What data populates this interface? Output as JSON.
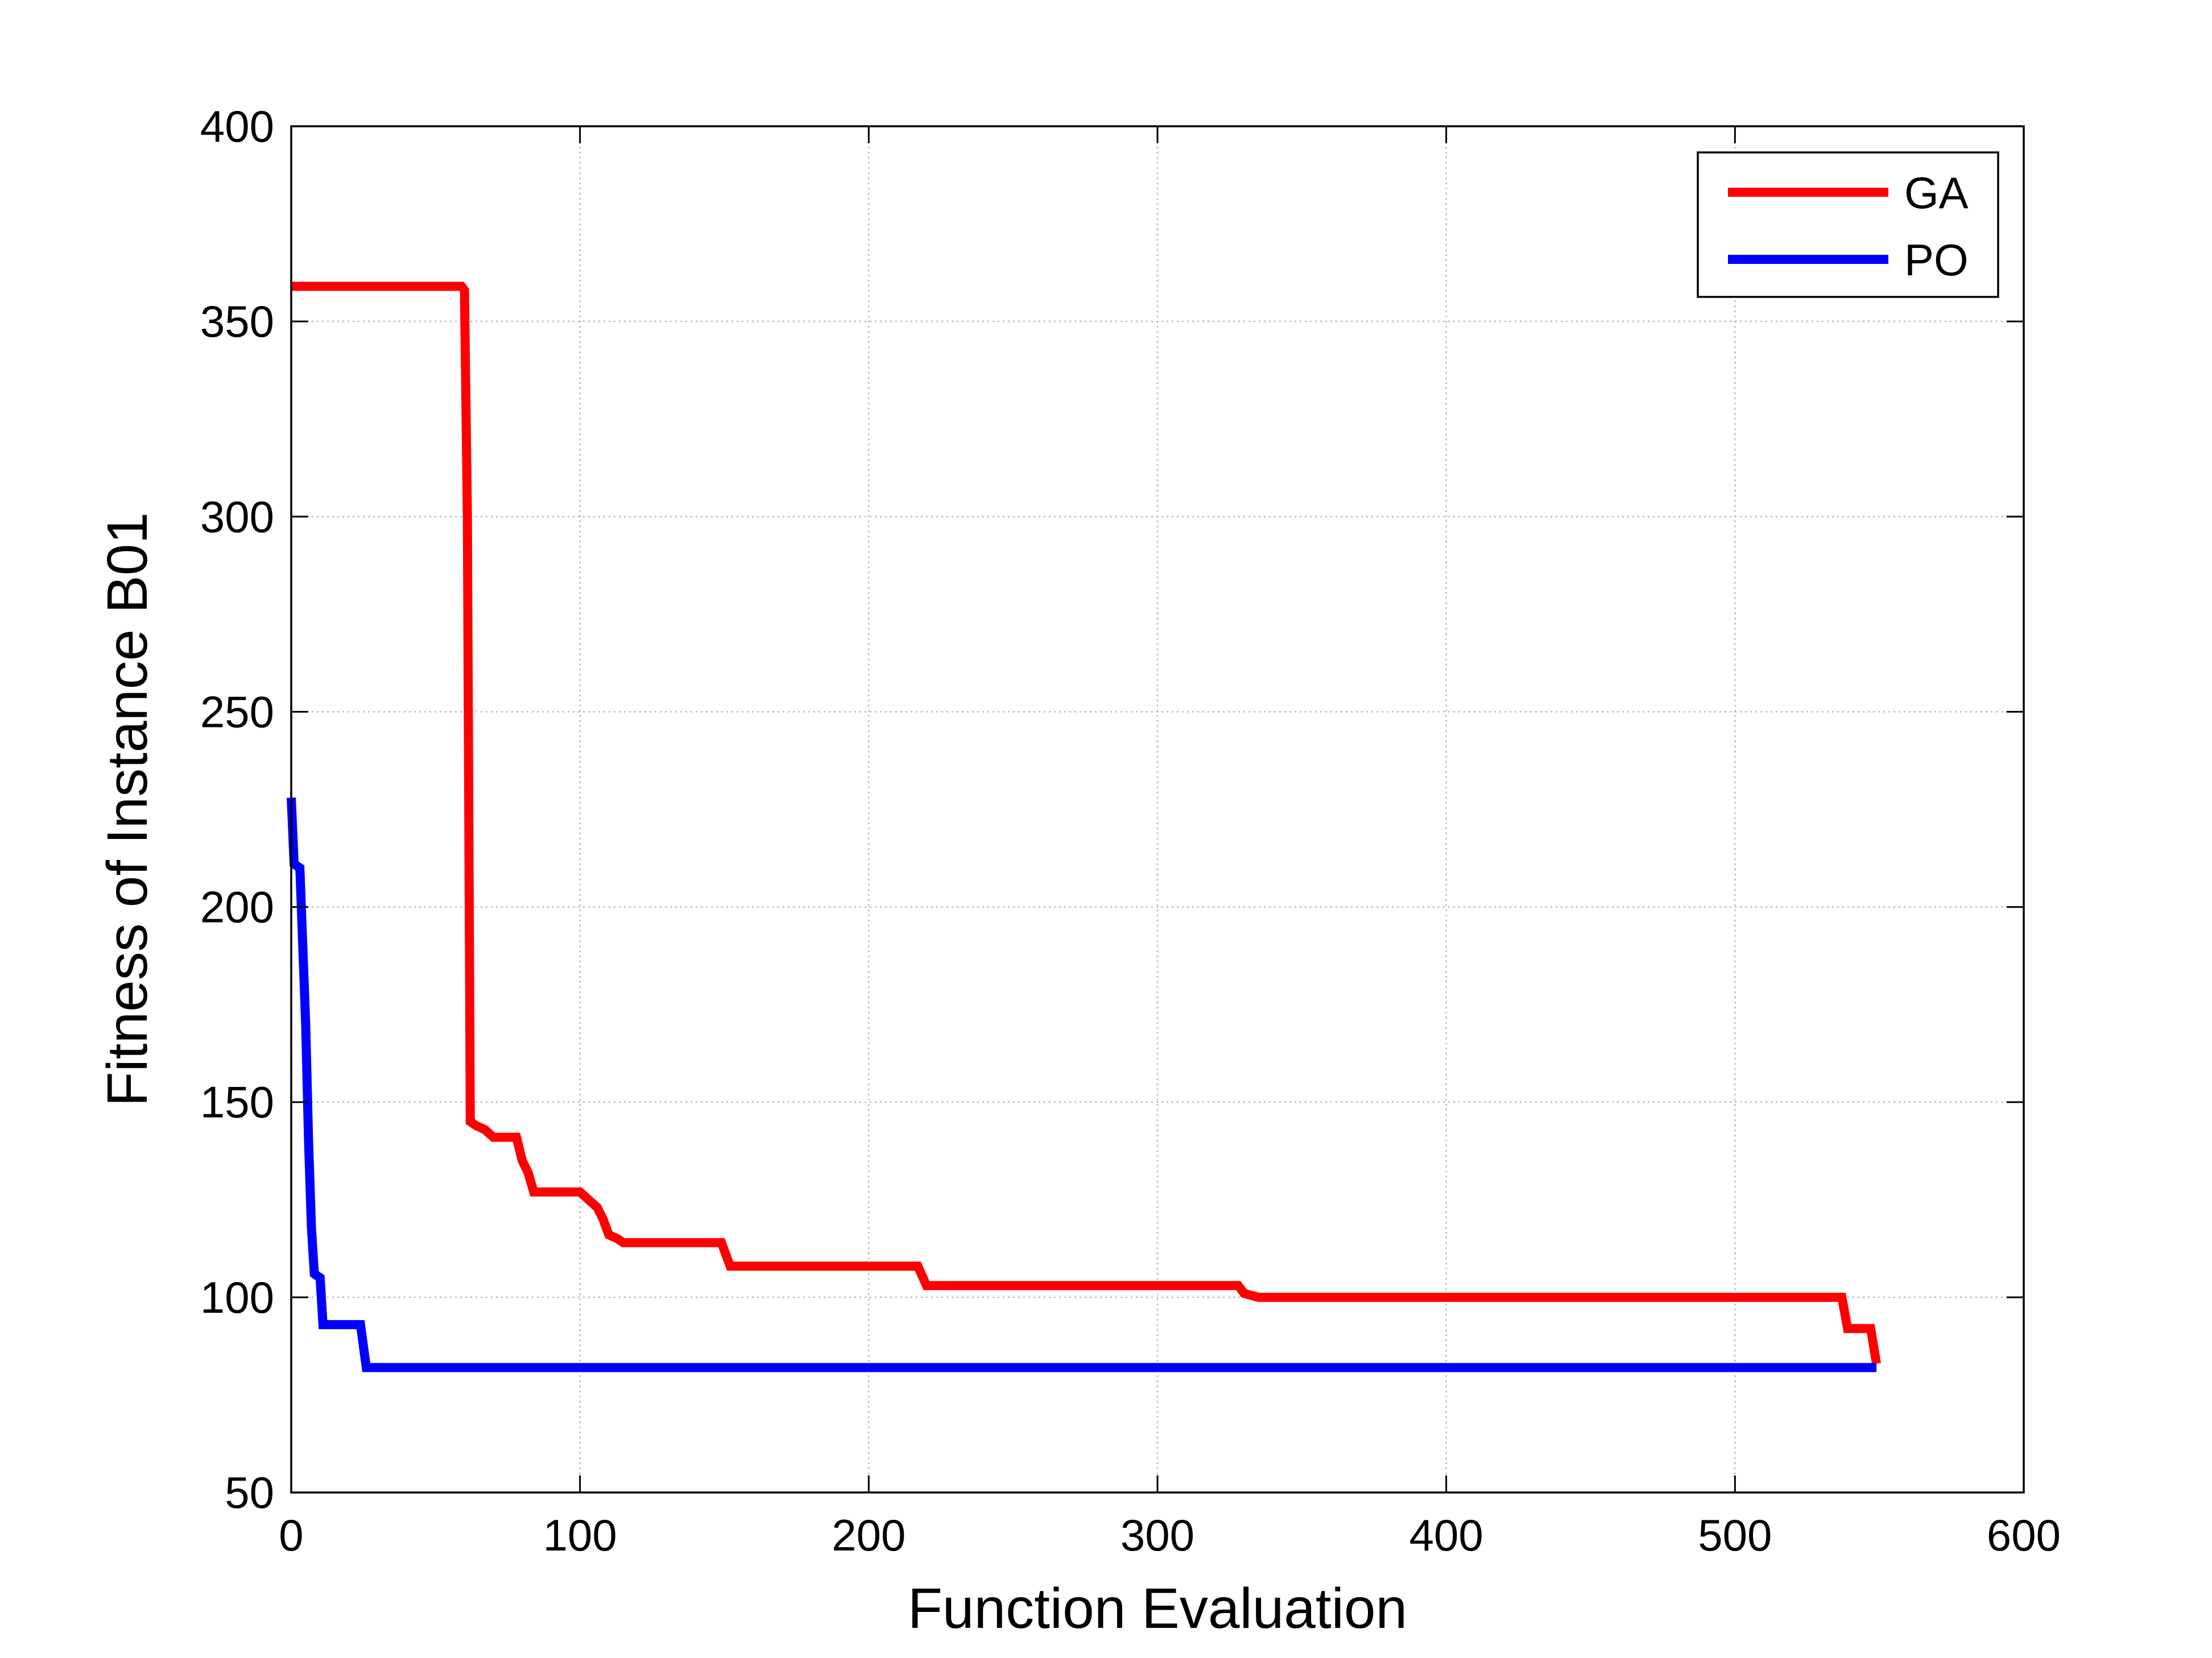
{
  "chart_data": {
    "type": "line",
    "xlabel": "Function Evaluation",
    "ylabel": "Fitness of Instance B01",
    "xlim": [
      0,
      600
    ],
    "ylim": [
      50,
      400
    ],
    "xticks": [
      0,
      100,
      200,
      300,
      400,
      500,
      600
    ],
    "yticks": [
      50,
      100,
      150,
      200,
      250,
      300,
      350,
      400
    ],
    "grid": true,
    "legend_position": "top-right",
    "series": [
      {
        "name": "GA",
        "color": "#ff0000",
        "points": [
          [
            0,
            359
          ],
          [
            59,
            359
          ],
          [
            60,
            358
          ],
          [
            61,
            300
          ],
          [
            62,
            145
          ],
          [
            64,
            144
          ],
          [
            67,
            143
          ],
          [
            70,
            141
          ],
          [
            78,
            141
          ],
          [
            80,
            135
          ],
          [
            82,
            132
          ],
          [
            84,
            127
          ],
          [
            100,
            127
          ],
          [
            103,
            125
          ],
          [
            106,
            123
          ],
          [
            108,
            120
          ],
          [
            110,
            116
          ],
          [
            113,
            115
          ],
          [
            115,
            114
          ],
          [
            149,
            114
          ],
          [
            152,
            108
          ],
          [
            217,
            108
          ],
          [
            220,
            103
          ],
          [
            328,
            103
          ],
          [
            330,
            101
          ],
          [
            335,
            100
          ],
          [
            537,
            100
          ],
          [
            539,
            92
          ],
          [
            547,
            92
          ],
          [
            549,
            83
          ]
        ]
      },
      {
        "name": "PO",
        "color": "#0000ff",
        "points": [
          [
            0,
            228
          ],
          [
            1,
            211
          ],
          [
            3,
            210
          ],
          [
            4,
            190
          ],
          [
            5,
            170
          ],
          [
            6,
            140
          ],
          [
            7,
            118
          ],
          [
            8,
            106
          ],
          [
            10,
            105
          ],
          [
            11,
            93
          ],
          [
            24,
            93
          ],
          [
            26,
            82
          ],
          [
            549,
            82
          ]
        ]
      }
    ]
  }
}
